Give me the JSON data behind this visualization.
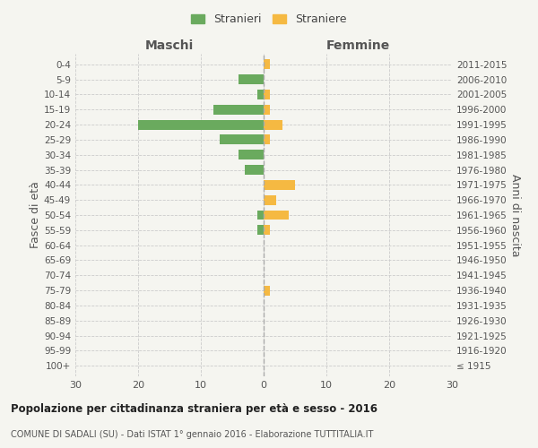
{
  "age_groups": [
    "100+",
    "95-99",
    "90-94",
    "85-89",
    "80-84",
    "75-79",
    "70-74",
    "65-69",
    "60-64",
    "55-59",
    "50-54",
    "45-49",
    "40-44",
    "35-39",
    "30-34",
    "25-29",
    "20-24",
    "15-19",
    "10-14",
    "5-9",
    "0-4"
  ],
  "birth_years": [
    "≤ 1915",
    "1916-1920",
    "1921-1925",
    "1926-1930",
    "1931-1935",
    "1936-1940",
    "1941-1945",
    "1946-1950",
    "1951-1955",
    "1956-1960",
    "1961-1965",
    "1966-1970",
    "1971-1975",
    "1976-1980",
    "1981-1985",
    "1986-1990",
    "1991-1995",
    "1996-2000",
    "2001-2005",
    "2006-2010",
    "2011-2015"
  ],
  "males": [
    0,
    0,
    0,
    0,
    0,
    0,
    0,
    0,
    0,
    1,
    1,
    0,
    0,
    3,
    4,
    7,
    20,
    8,
    1,
    4,
    0
  ],
  "females": [
    0,
    0,
    0,
    0,
    0,
    1,
    0,
    0,
    0,
    1,
    4,
    2,
    5,
    0,
    0,
    1,
    3,
    1,
    1,
    0,
    1
  ],
  "male_color": "#6aaa5e",
  "female_color": "#f5b942",
  "background_color": "#f5f5f0",
  "xlim": 30,
  "title": "Popolazione per cittadinanza straniera per età e sesso - 2016",
  "subtitle": "COMUNE DI SADALI (SU) - Dati ISTAT 1° gennaio 2016 - Elaborazione TUTTITALIA.IT",
  "left_label": "Maschi",
  "right_label": "Femmine",
  "left_axis_label": "Fasce di età",
  "right_axis_label": "Anni di nascita",
  "legend_male": "Stranieri",
  "legend_female": "Straniere"
}
